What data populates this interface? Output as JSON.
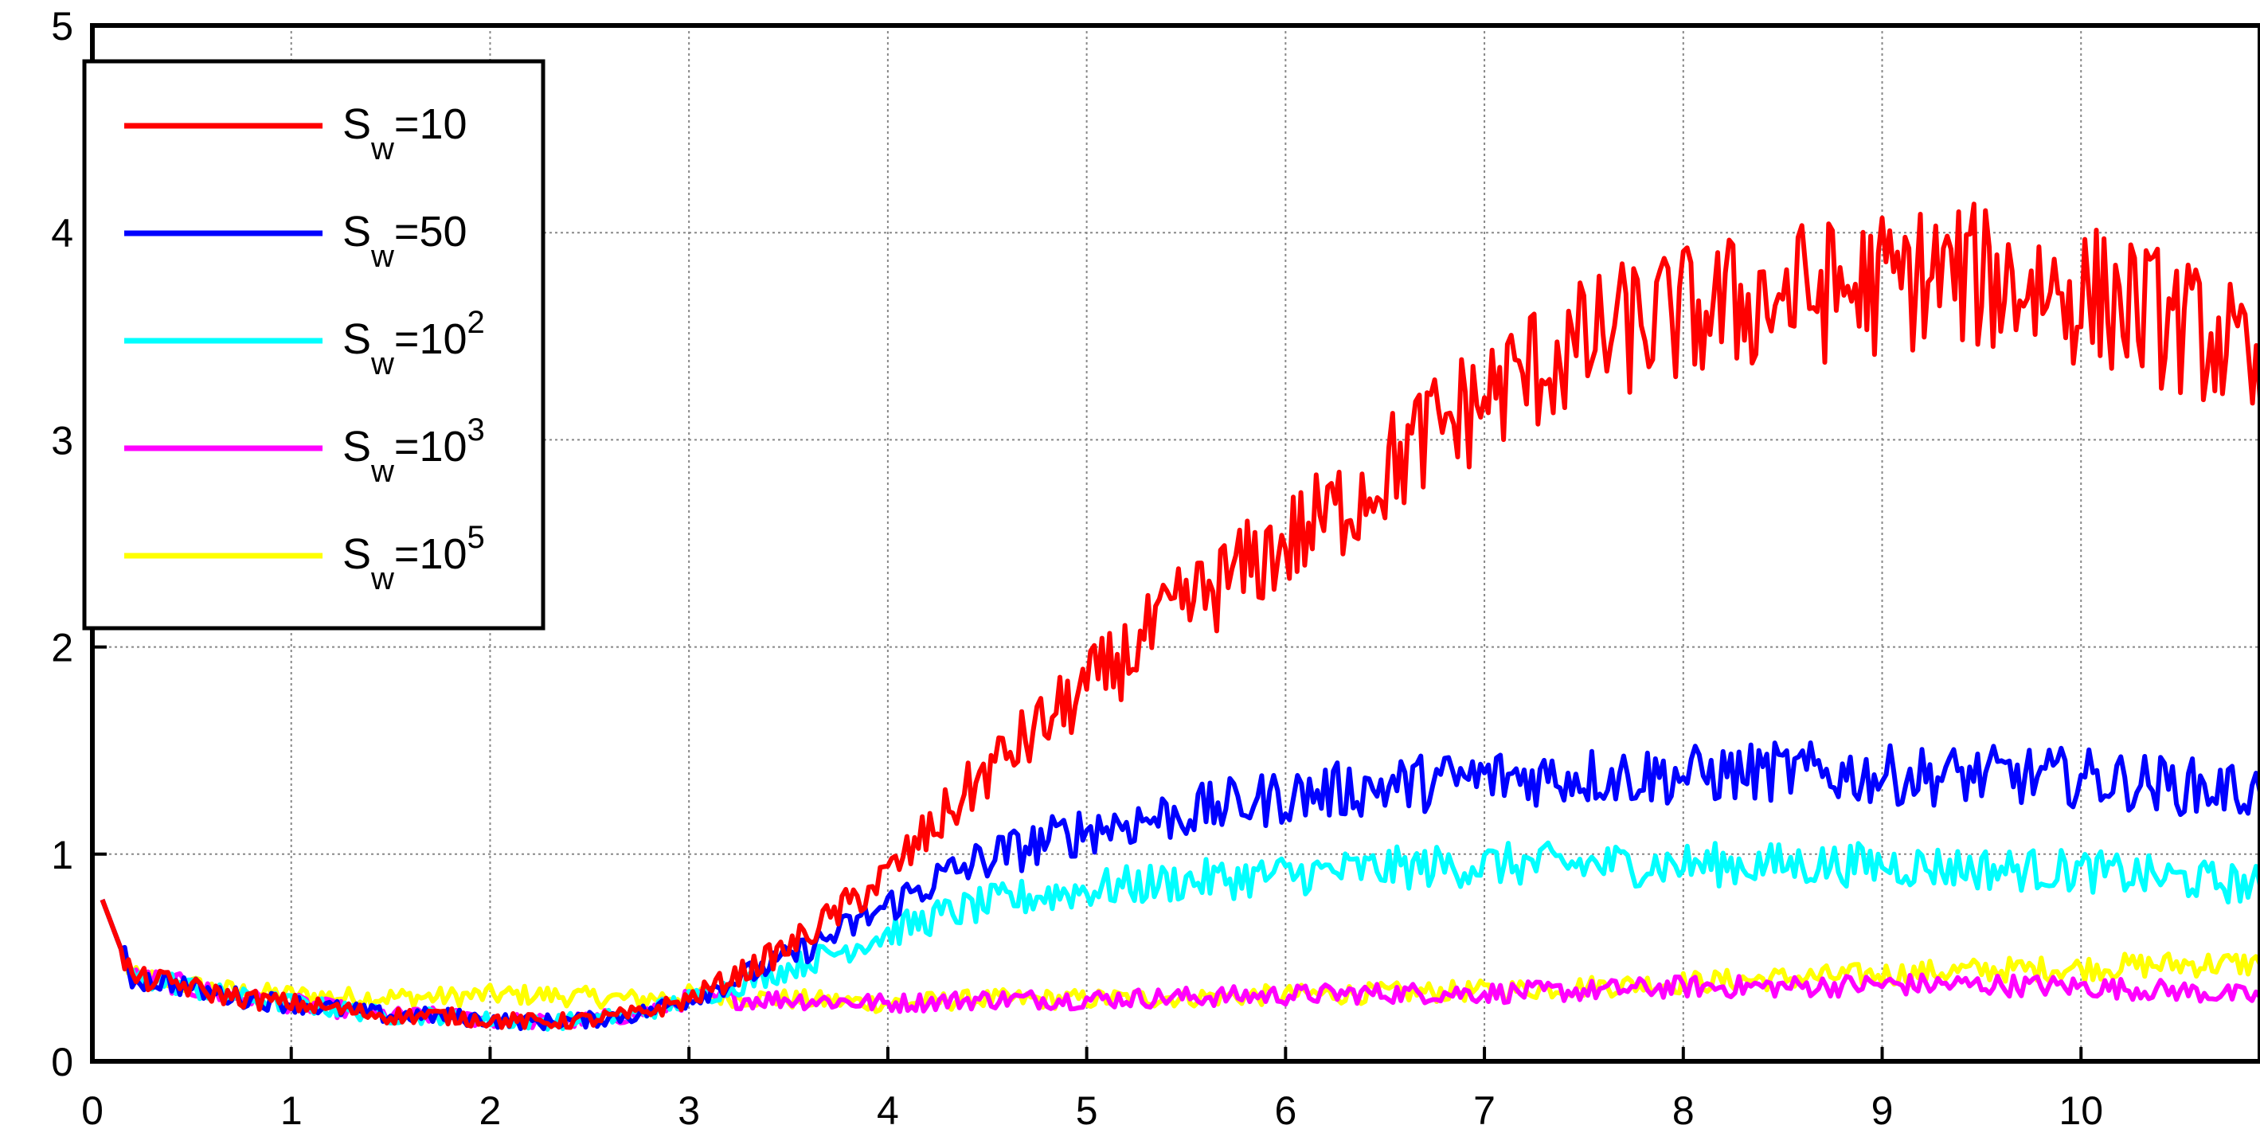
{
  "chart_data": {
    "type": "line",
    "title": "",
    "xlabel": "",
    "ylabel": "",
    "xlim": [
      0,
      10.9
    ],
    "ylim": [
      0,
      5
    ],
    "xticks": [
      0,
      1,
      2,
      3,
      4,
      5,
      6,
      7,
      8,
      9,
      10
    ],
    "yticks": [
      0,
      1,
      2,
      3,
      4,
      5
    ],
    "xtick_labels": [
      "0",
      "1",
      "2",
      "3",
      "4",
      "5",
      "6",
      "7",
      "8",
      "9",
      "10"
    ],
    "ytick_labels": [
      "0",
      "1",
      "2",
      "3",
      "4",
      "5"
    ],
    "grid": true,
    "legend_position": "top-left",
    "series": [
      {
        "name": "S_w=10",
        "label": {
          "base": "S",
          "sub": "w",
          "eq": "=10",
          "sup": ""
        },
        "color": "#ff0000",
        "x": [
          0.05,
          0.2,
          0.4,
          0.6,
          0.8,
          1.0,
          1.25,
          1.5,
          1.75,
          2.0,
          2.25,
          2.5,
          2.75,
          3.0,
          3.25,
          3.5,
          3.75,
          4.0,
          4.25,
          4.5,
          4.75,
          5.0,
          5.25,
          5.5,
          5.75,
          6.0,
          6.25,
          6.5,
          6.75,
          7.0,
          7.25,
          7.5,
          7.75,
          8.0,
          8.25,
          8.5,
          8.75,
          9.0,
          9.25,
          9.5,
          9.75,
          10.0,
          10.25,
          10.5,
          10.75,
          10.9
        ],
        "y": [
          0.78,
          0.4,
          0.38,
          0.33,
          0.3,
          0.28,
          0.25,
          0.22,
          0.22,
          0.2,
          0.19,
          0.2,
          0.23,
          0.3,
          0.42,
          0.55,
          0.72,
          0.9,
          1.15,
          1.4,
          1.6,
          1.8,
          2.0,
          2.2,
          2.35,
          2.5,
          2.65,
          2.85,
          3.05,
          3.2,
          3.35,
          3.45,
          3.55,
          3.6,
          3.65,
          3.7,
          3.72,
          3.75,
          3.8,
          3.78,
          3.75,
          3.7,
          3.65,
          3.55,
          3.45,
          3.2
        ]
      },
      {
        "name": "S_w=50",
        "label": {
          "base": "S",
          "sub": "w",
          "eq": "=50",
          "sup": ""
        },
        "color": "#0000ff",
        "x": [
          0.05,
          0.2,
          0.4,
          0.6,
          0.8,
          1.0,
          1.25,
          1.5,
          1.75,
          2.0,
          2.25,
          2.5,
          2.75,
          3.0,
          3.25,
          3.5,
          3.75,
          4.0,
          4.25,
          4.5,
          4.75,
          5.0,
          5.5,
          6.0,
          6.5,
          7.0,
          7.5,
          8.0,
          8.5,
          9.0,
          9.5,
          10.0,
          10.5,
          10.9
        ],
        "y": [
          0.78,
          0.4,
          0.38,
          0.33,
          0.3,
          0.28,
          0.25,
          0.22,
          0.22,
          0.2,
          0.19,
          0.2,
          0.23,
          0.3,
          0.4,
          0.5,
          0.62,
          0.75,
          0.88,
          0.98,
          1.05,
          1.12,
          1.2,
          1.28,
          1.33,
          1.37,
          1.38,
          1.38,
          1.4,
          1.38,
          1.38,
          1.37,
          1.33,
          1.3
        ]
      },
      {
        "name": "S_w=10^2",
        "label": {
          "base": "S",
          "sub": "w",
          "eq": "=10",
          "sup": "2"
        },
        "color": "#00ffff",
        "x": [
          0.05,
          0.2,
          0.4,
          0.6,
          0.8,
          1.0,
          1.25,
          1.5,
          1.75,
          2.0,
          2.25,
          2.5,
          2.75,
          3.0,
          3.25,
          3.5,
          3.75,
          4.0,
          4.25,
          4.5,
          4.75,
          5.0,
          5.5,
          6.0,
          6.5,
          7.0,
          7.5,
          8.0,
          8.5,
          9.0,
          9.5,
          10.0,
          10.5,
          10.9
        ],
        "y": [
          0.78,
          0.4,
          0.38,
          0.33,
          0.3,
          0.28,
          0.25,
          0.22,
          0.22,
          0.2,
          0.19,
          0.2,
          0.23,
          0.3,
          0.37,
          0.45,
          0.53,
          0.62,
          0.7,
          0.76,
          0.8,
          0.83,
          0.87,
          0.9,
          0.93,
          0.95,
          0.95,
          0.95,
          0.95,
          0.95,
          0.93,
          0.92,
          0.88,
          0.85
        ]
      },
      {
        "name": "S_w=10^3",
        "label": {
          "base": "S",
          "sub": "w",
          "eq": "=10",
          "sup": "3"
        },
        "color": "#ff00ff",
        "x": [
          0.05,
          0.2,
          0.4,
          0.6,
          0.8,
          1.0,
          1.25,
          1.5,
          1.75,
          2.0,
          2.25,
          2.5,
          2.75,
          3.0,
          3.5,
          4.0,
          4.5,
          5.0,
          5.5,
          6.0,
          6.5,
          7.0,
          7.5,
          8.0,
          8.5,
          9.0,
          9.5,
          10.0,
          10.5,
          10.9
        ],
        "y": [
          0.78,
          0.4,
          0.38,
          0.33,
          0.3,
          0.28,
          0.25,
          0.22,
          0.22,
          0.2,
          0.19,
          0.2,
          0.23,
          0.3,
          0.3,
          0.28,
          0.3,
          0.3,
          0.31,
          0.32,
          0.33,
          0.33,
          0.34,
          0.36,
          0.36,
          0.37,
          0.37,
          0.36,
          0.34,
          0.31
        ]
      },
      {
        "name": "S_w=10^5",
        "label": {
          "base": "S",
          "sub": "w",
          "eq": "=10",
          "sup": "5"
        },
        "color": "#ffff00",
        "x": [
          0.05,
          0.2,
          0.4,
          0.6,
          0.8,
          1.0,
          1.25,
          1.5,
          1.75,
          2.0,
          2.25,
          2.5,
          2.75,
          3.0,
          3.5,
          4.0,
          4.5,
          5.0,
          5.5,
          6.0,
          6.5,
          7.0,
          7.5,
          8.0,
          8.5,
          9.0,
          9.5,
          10.0,
          10.5,
          10.9
        ],
        "y": [
          0.78,
          0.4,
          0.38,
          0.35,
          0.33,
          0.32,
          0.31,
          0.31,
          0.31,
          0.32,
          0.32,
          0.31,
          0.3,
          0.32,
          0.3,
          0.28,
          0.3,
          0.3,
          0.31,
          0.32,
          0.33,
          0.34,
          0.36,
          0.38,
          0.4,
          0.42,
          0.44,
          0.45,
          0.47,
          0.47
        ]
      }
    ]
  }
}
